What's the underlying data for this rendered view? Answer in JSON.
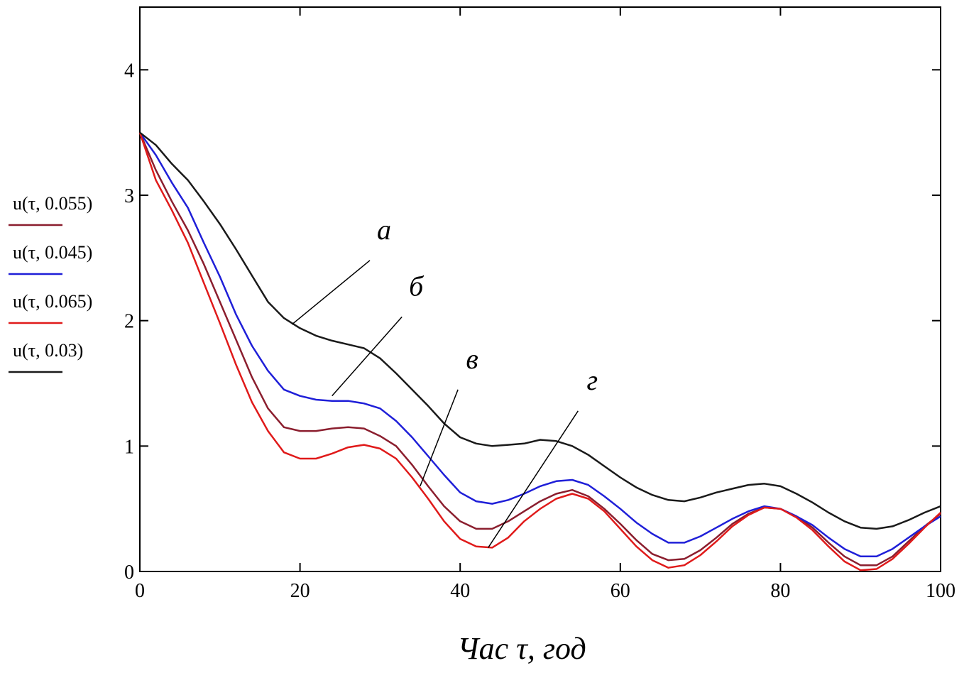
{
  "chart_data": {
    "type": "line",
    "xlabel": "Час τ, год",
    "ylabel": "",
    "xlim": [
      0,
      100
    ],
    "ylim": [
      0,
      4.5
    ],
    "x_ticks": [
      0,
      20,
      40,
      60,
      80,
      100
    ],
    "y_ticks": [
      0,
      1,
      2,
      3,
      4
    ],
    "x_tick_labels": [
      "0",
      "20",
      "40",
      "60",
      "80",
      "100"
    ],
    "y_tick_labels": [
      "0",
      "1",
      "2",
      "3",
      "4"
    ],
    "grid": false,
    "legend_position": "left",
    "x": [
      0,
      2,
      4,
      6,
      8,
      10,
      12,
      14,
      16,
      18,
      20,
      22,
      24,
      26,
      28,
      30,
      32,
      34,
      36,
      38,
      40,
      42,
      44,
      46,
      48,
      50,
      52,
      54,
      56,
      58,
      60,
      62,
      64,
      66,
      68,
      70,
      72,
      74,
      76,
      78,
      80,
      82,
      84,
      86,
      88,
      90,
      92,
      94,
      96,
      98,
      100
    ],
    "series": [
      {
        "name": "u(τ, 0.055)",
        "color": "#8b1e2e",
        "values": [
          3.5,
          3.2,
          2.95,
          2.72,
          2.45,
          2.15,
          1.85,
          1.55,
          1.3,
          1.15,
          1.12,
          1.12,
          1.14,
          1.15,
          1.14,
          1.08,
          1.0,
          0.85,
          0.68,
          0.52,
          0.4,
          0.34,
          0.34,
          0.4,
          0.48,
          0.56,
          0.62,
          0.65,
          0.6,
          0.5,
          0.38,
          0.25,
          0.14,
          0.09,
          0.1,
          0.17,
          0.27,
          0.38,
          0.46,
          0.51,
          0.5,
          0.44,
          0.35,
          0.23,
          0.12,
          0.05,
          0.05,
          0.12,
          0.24,
          0.36,
          0.46
        ]
      },
      {
        "name": "u(τ, 0.045)",
        "color": "#1f1fd8",
        "values": [
          3.5,
          3.32,
          3.1,
          2.9,
          2.62,
          2.35,
          2.05,
          1.8,
          1.6,
          1.45,
          1.4,
          1.37,
          1.36,
          1.36,
          1.34,
          1.3,
          1.2,
          1.07,
          0.92,
          0.77,
          0.63,
          0.56,
          0.54,
          0.57,
          0.62,
          0.68,
          0.72,
          0.73,
          0.69,
          0.6,
          0.5,
          0.39,
          0.3,
          0.23,
          0.23,
          0.28,
          0.35,
          0.42,
          0.48,
          0.52,
          0.5,
          0.44,
          0.37,
          0.27,
          0.18,
          0.12,
          0.12,
          0.18,
          0.27,
          0.36,
          0.44
        ]
      },
      {
        "name": "u(τ, 0.065)",
        "color": "#e01a1a",
        "values": [
          3.5,
          3.12,
          2.88,
          2.62,
          2.3,
          1.98,
          1.65,
          1.35,
          1.12,
          0.95,
          0.9,
          0.9,
          0.94,
          0.99,
          1.01,
          0.98,
          0.9,
          0.75,
          0.58,
          0.4,
          0.26,
          0.2,
          0.19,
          0.27,
          0.4,
          0.5,
          0.58,
          0.62,
          0.58,
          0.48,
          0.34,
          0.2,
          0.09,
          0.03,
          0.05,
          0.13,
          0.24,
          0.36,
          0.45,
          0.51,
          0.5,
          0.43,
          0.33,
          0.2,
          0.08,
          0.01,
          0.02,
          0.1,
          0.22,
          0.35,
          0.47
        ]
      },
      {
        "name": "u(τ, 0.03)",
        "color": "#1a1a1a",
        "values": [
          3.5,
          3.4,
          3.25,
          3.12,
          2.95,
          2.77,
          2.57,
          2.36,
          2.15,
          2.02,
          1.94,
          1.88,
          1.84,
          1.81,
          1.78,
          1.7,
          1.58,
          1.45,
          1.32,
          1.18,
          1.07,
          1.02,
          1.0,
          1.01,
          1.02,
          1.05,
          1.04,
          1.0,
          0.93,
          0.84,
          0.75,
          0.67,
          0.61,
          0.57,
          0.56,
          0.59,
          0.63,
          0.66,
          0.69,
          0.7,
          0.68,
          0.62,
          0.55,
          0.47,
          0.4,
          0.35,
          0.34,
          0.36,
          0.41,
          0.47,
          0.52
        ]
      }
    ],
    "legend": [
      {
        "label": "u(τ, 0.055)",
        "color": "#8b1e2e"
      },
      {
        "label": "u(τ, 0.045)",
        "color": "#1f1fd8"
      },
      {
        "label": "u(τ, 0.065)",
        "color": "#e01a1a"
      },
      {
        "label": "u(τ, 0.03)",
        "color": "#1a1a1a"
      }
    ],
    "annotations": [
      {
        "text": "а",
        "point": [
          19,
          1.97
        ],
        "label_at": [
          30.5,
          2.65
        ]
      },
      {
        "text": "б",
        "point": [
          24,
          1.4
        ],
        "label_at": [
          34.5,
          2.2
        ]
      },
      {
        "text": "в",
        "point": [
          35,
          0.68
        ],
        "label_at": [
          41.5,
          1.62
        ]
      },
      {
        "text": "г",
        "point": [
          43.5,
          0.19
        ],
        "label_at": [
          56.5,
          1.45
        ]
      }
    ]
  }
}
